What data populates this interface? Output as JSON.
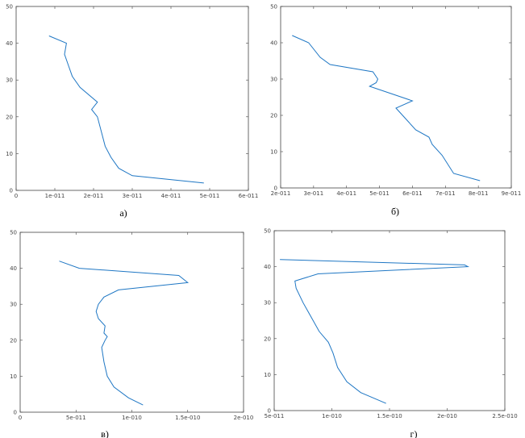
{
  "colors": {
    "line": "#1f77c4",
    "frame": "#444444"
  },
  "chart_data": [
    {
      "type": "line",
      "caption": "а)",
      "xlim": [
        0,
        6e-11
      ],
      "ylim": [
        0,
        50
      ],
      "xticks": [
        0,
        1e-11,
        2e-11,
        3e-11,
        4e-11,
        5e-11,
        6e-11
      ],
      "xtick_labels": [
        "0",
        "1e-011",
        "2e-011",
        "3e-011",
        "4e-011",
        "5e-011",
        "6e-011"
      ],
      "yticks": [
        0,
        10,
        20,
        30,
        40,
        50
      ],
      "ytick_labels": [
        "0",
        "10",
        "20",
        "30",
        "40",
        "50"
      ],
      "series": [
        {
          "x": [
            8.5e-12,
            1.3e-11,
            1.25e-11,
            1.35e-11,
            1.45e-11,
            1.65e-11,
            2.1e-11,
            1.95e-11,
            2.1e-11,
            2.2e-11,
            2.3e-11,
            2.45e-11,
            2.65e-11,
            3e-11,
            4.85e-11
          ],
          "y": [
            42,
            40,
            37,
            34,
            31,
            28,
            24,
            22,
            20,
            16,
            12,
            9,
            6,
            4,
            2
          ]
        }
      ]
    },
    {
      "type": "line",
      "caption": "б)",
      "xlim": [
        2e-11,
        9e-11
      ],
      "ylim": [
        0,
        50
      ],
      "xticks": [
        2e-11,
        3e-11,
        4e-11,
        5e-11,
        6e-11,
        7e-11,
        8e-11,
        9e-11
      ],
      "xtick_labels": [
        "2e-011",
        "3e-011",
        "4e-011",
        "5e-011",
        "6e-011",
        "7e-011",
        "8e-011",
        "9e-011"
      ],
      "yticks": [
        0,
        10,
        20,
        30,
        40,
        50
      ],
      "ytick_labels": [
        "0",
        "10",
        "20",
        "30",
        "40",
        "50"
      ],
      "series": [
        {
          "x": [
            2.35e-11,
            2.85e-11,
            3.2e-11,
            3.5e-11,
            4.8e-11,
            4.95e-11,
            4.9e-11,
            4.7e-11,
            6e-11,
            5.5e-11,
            5.8e-11,
            6.1e-11,
            6.5e-11,
            6.6e-11,
            6.9e-11,
            7.25e-11,
            8.05e-11
          ],
          "y": [
            42,
            40,
            36,
            34,
            32,
            30,
            29,
            28,
            24,
            22,
            19,
            16,
            14,
            12,
            9,
            4,
            2
          ]
        }
      ]
    },
    {
      "type": "line",
      "caption": "в)",
      "xlim": [
        0,
        2e-10
      ],
      "ylim": [
        0,
        50
      ],
      "xticks": [
        0,
        5e-11,
        1e-10,
        1.5e-10,
        2e-10
      ],
      "xtick_labels": [
        "0",
        "5e-011",
        "1e-010",
        "1.5e-010",
        "2e-010"
      ],
      "yticks": [
        0,
        10,
        20,
        30,
        40,
        50
      ],
      "ytick_labels": [
        "0",
        "10",
        "20",
        "30",
        "40",
        "50"
      ],
      "series": [
        {
          "x": [
            3.5e-11,
            5.3e-11,
            1.42e-10,
            1.5e-10,
            8.8e-11,
            7.5e-11,
            7e-11,
            6.8e-11,
            7e-11,
            7.6e-11,
            7.5e-11,
            7.8e-11,
            7.6e-11,
            7.3e-11,
            7.5e-11,
            7.8e-11,
            8.4e-11,
            9.7e-11,
            1.1e-10
          ],
          "y": [
            42,
            40,
            38,
            36,
            34,
            32,
            30,
            28,
            26,
            24,
            22,
            21,
            20,
            18,
            14,
            10,
            7,
            4,
            2
          ]
        }
      ]
    },
    {
      "type": "line",
      "caption": "г)",
      "xlim": [
        5e-11,
        2.5e-10
      ],
      "ylim": [
        0,
        50
      ],
      "xticks": [
        5e-11,
        1e-10,
        1.5e-10,
        2e-10,
        2.5e-10
      ],
      "xtick_labels": [
        "5e-011",
        "1e-010",
        "1.5e-010",
        "2e-010",
        "2.5e-010"
      ],
      "yticks": [
        0,
        10,
        20,
        30,
        40,
        50
      ],
      "ytick_labels": [
        "0",
        "10",
        "20",
        "30",
        "40",
        "50"
      ],
      "series": [
        {
          "x": [
            5.5e-11,
            2.15e-10,
            2.18e-10,
            8.8e-11,
            6.8e-11,
            6.9e-11,
            7.5e-11,
            8.2e-11,
            8.9e-11,
            9.7e-11,
            1.01e-10,
            1.05e-10,
            1.13e-10,
            1.25e-10,
            1.47e-10
          ],
          "y": [
            42,
            40.5,
            40,
            38,
            36,
            34,
            30,
            26,
            22,
            19,
            16,
            12,
            8,
            5,
            2
          ]
        }
      ]
    }
  ]
}
